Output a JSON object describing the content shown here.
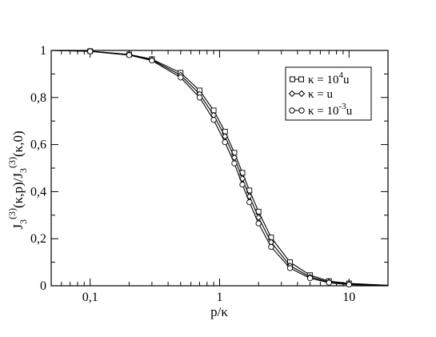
{
  "chart_data": {
    "type": "line",
    "x_scale": "log",
    "xlim": [
      0.05,
      20
    ],
    "ylim": [
      0,
      1
    ],
    "xlabel": "p/κ",
    "ylabel": "J_3^(3)(κ,p)/J_3^(3)(κ,0)",
    "ylabel_parts": {
      "J": "J",
      "sub": "3",
      "sup": "(3)",
      "mid": "(κ,p)/J",
      "end": "(κ,0)"
    },
    "xlabel_parts": {
      "p": "p/",
      "kappa": "κ"
    },
    "x_ticks": [
      {
        "value": 0.1,
        "label": "0,1"
      },
      {
        "value": 1,
        "label": "1"
      },
      {
        "value": 10,
        "label": "10"
      }
    ],
    "y_ticks": [
      {
        "value": 0,
        "label": "0"
      },
      {
        "value": 0.2,
        "label": "0,2"
      },
      {
        "value": 0.4,
        "label": "0,4"
      },
      {
        "value": 0.6,
        "label": "0,6"
      },
      {
        "value": 0.8,
        "label": "0,8"
      },
      {
        "value": 1,
        "label": "1"
      }
    ],
    "grid": false,
    "legend_position": "top-right",
    "series": [
      {
        "name": "κ = 10^4 u",
        "legend": {
          "base": "κ = 10",
          "sup": "4",
          "end": "u"
        },
        "marker": "square",
        "x": [
          0.05,
          0.1,
          0.2,
          0.3,
          0.5,
          0.7,
          0.9,
          1.1,
          1.3,
          1.5,
          1.7,
          2.0,
          2.5,
          3.5,
          5.0,
          7.0,
          10.0,
          20.0
        ],
        "y": [
          1.0,
          0.997,
          0.983,
          0.963,
          0.905,
          0.83,
          0.745,
          0.655,
          0.565,
          0.48,
          0.405,
          0.315,
          0.205,
          0.1,
          0.045,
          0.02,
          0.01,
          0.002
        ]
      },
      {
        "name": "κ = u",
        "legend": {
          "base": "κ = u",
          "sup": "",
          "end": ""
        },
        "marker": "diamond",
        "x": [
          0.05,
          0.1,
          0.2,
          0.3,
          0.5,
          0.7,
          0.9,
          1.1,
          1.3,
          1.5,
          1.7,
          2.0,
          2.5,
          3.5,
          5.0,
          7.0,
          10.0,
          20.0
        ],
        "y": [
          1.0,
          0.997,
          0.982,
          0.96,
          0.895,
          0.815,
          0.725,
          0.635,
          0.545,
          0.455,
          0.38,
          0.29,
          0.185,
          0.085,
          0.038,
          0.016,
          0.007,
          0.002
        ]
      },
      {
        "name": "κ = 10^-3 u",
        "legend": {
          "base": "κ = 10",
          "sup": "-3",
          "end": "u"
        },
        "marker": "circle",
        "x": [
          0.05,
          0.1,
          0.2,
          0.3,
          0.5,
          0.7,
          0.9,
          1.1,
          1.3,
          1.5,
          1.7,
          2.0,
          2.5,
          3.5,
          5.0,
          7.0,
          10.0,
          20.0
        ],
        "y": [
          1.0,
          0.996,
          0.98,
          0.957,
          0.885,
          0.8,
          0.705,
          0.61,
          0.52,
          0.43,
          0.355,
          0.265,
          0.165,
          0.075,
          0.032,
          0.013,
          0.005,
          0.001
        ]
      }
    ]
  }
}
